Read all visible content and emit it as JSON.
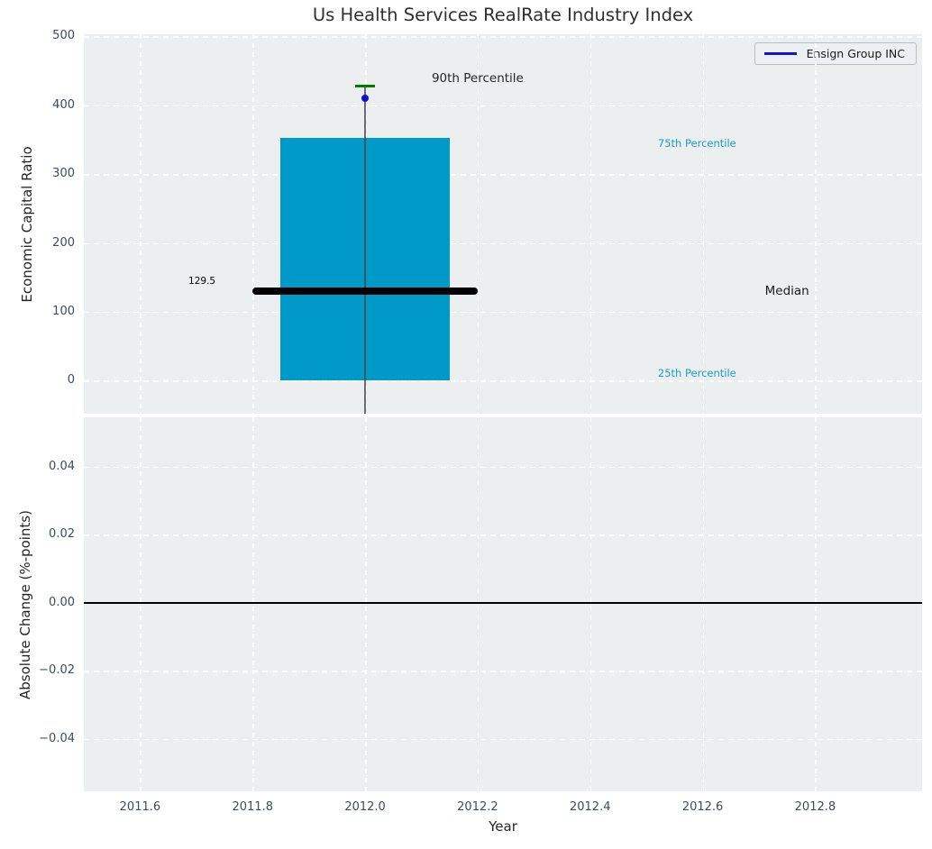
{
  "title": "Us Health Services RealRate Industry Index",
  "legend": {
    "label": "Ensign Group INC",
    "line_color": "#1414cc"
  },
  "axis_labels": {
    "y_top": "Economic Capital Ratio",
    "y_bottom": "Absolute Change (%-points)",
    "x": "Year"
  },
  "colors": {
    "axes_background": "#eceff0",
    "grid": "#ffffff",
    "box_fill": "#009ac9",
    "median_line": "#000000",
    "whisker": "#464646",
    "percentile90_cap": "#007d00",
    "company_dot": "#0e0ed6",
    "tick_label": "#3e4c5c",
    "cyan_label": "#1a9cc9",
    "dark_label": "#262626"
  },
  "chart_data": [
    {
      "type": "box",
      "title": "Us Health Services RealRate Industry Index",
      "ylabel": "Economic Capital Ratio",
      "grid": true,
      "legend_position": "upper right",
      "xlim": [
        2011.5,
        2012.99
      ],
      "ylim": [
        -48,
        503
      ],
      "xticks": [
        2011.6,
        2011.8,
        2012.0,
        2012.2,
        2012.4,
        2012.6,
        2012.8
      ],
      "yticks": [
        0,
        100,
        200,
        300,
        400,
        500
      ],
      "ytick_labels": [
        "0",
        "100",
        "200",
        "300",
        "400",
        "500"
      ],
      "box": {
        "year": 2012.0,
        "box_left": 2011.85,
        "box_right": 2012.15,
        "p25": 0,
        "median": 129.5,
        "p75": 353,
        "p90": 427.5,
        "whisker_bottom": -48,
        "median_line_left": 2011.8,
        "median_line_right": 2012.2,
        "cap_left": 2011.982,
        "cap_right": 2012.018
      },
      "company_point": {
        "label": "Ensign Group INC",
        "x": 2012.0,
        "y": 410
      },
      "annotations": [
        {
          "text": "90th Percentile",
          "x": 2012.2,
          "y": 439,
          "color": "#262626",
          "size": 13.5
        },
        {
          "text": "75th Percentile",
          "x": 2012.59,
          "y": 345,
          "color": "#1a9cc9",
          "size": 11.5
        },
        {
          "text": "Median",
          "x": 2012.75,
          "y": 130,
          "color": "#1a1a1a",
          "size": 13.5
        },
        {
          "text": "25th Percentile",
          "x": 2012.59,
          "y": 11,
          "color": "#1a9cc9",
          "size": 11.5
        },
        {
          "text": "129.5",
          "x": 2011.71,
          "y": 145,
          "color": "#000000",
          "size": 10.5
        }
      ]
    },
    {
      "type": "line",
      "ylabel": "Absolute Change (%-points)",
      "xlabel": "Year",
      "grid": true,
      "xlim": [
        2011.5,
        2012.99
      ],
      "ylim": [
        -0.0555,
        0.0545
      ],
      "xticks": [
        2011.6,
        2011.8,
        2012.0,
        2012.2,
        2012.4,
        2012.6,
        2012.8
      ],
      "xtick_labels": [
        "2011.6",
        "2011.8",
        "2012.0",
        "2012.2",
        "2012.4",
        "2012.6",
        "2012.8"
      ],
      "yticks": [
        0.04,
        0.02,
        0.0,
        -0.02,
        -0.04
      ],
      "ytick_labels": [
        "0.04",
        "0.02",
        "0.00",
        "−0.02",
        "−0.04"
      ],
      "zero_line_y": 0.0,
      "series": [
        {
          "name": "Ensign Group INC",
          "x": [],
          "y": []
        }
      ]
    }
  ]
}
